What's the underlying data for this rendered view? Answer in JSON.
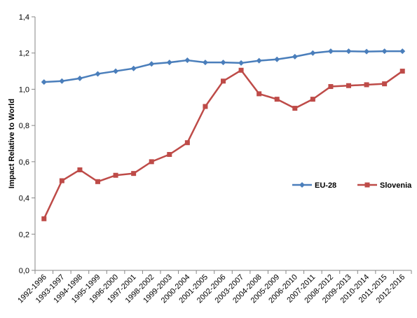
{
  "chart_data": {
    "type": "line",
    "title": "",
    "xlabel": "",
    "ylabel": "Impact Relative to World",
    "ylim": [
      0,
      1.4
    ],
    "yticks": [
      "0,0",
      "0,2",
      "0,4",
      "0,6",
      "0,8",
      "1,0",
      "1,2",
      "1,4"
    ],
    "grid": false,
    "legend_position": "right",
    "categories": [
      "1992-1996",
      "1993-1997",
      "1994-1998",
      "1995-1999",
      "1996-2000",
      "1997-2001",
      "1998-2002",
      "1999-2003",
      "2000-2004",
      "2001-2005",
      "2002-2006",
      "2003-2007",
      "2004-2008",
      "2005-2009",
      "2006-2010",
      "2007-2011",
      "2008-2012",
      "2009-2013",
      "2010-2014",
      "2011-2015",
      "2012-2016"
    ],
    "series": [
      {
        "name": "EU-28",
        "color": "#4a7ebb",
        "marker": "diamond",
        "values": [
          1.04,
          1.045,
          1.06,
          1.085,
          1.1,
          1.115,
          1.14,
          1.148,
          1.16,
          1.148,
          1.148,
          1.145,
          1.158,
          1.165,
          1.18,
          1.2,
          1.21,
          1.21,
          1.208,
          1.21,
          1.21
        ]
      },
      {
        "name": "Slovenia",
        "color": "#be4b48",
        "marker": "square",
        "values": [
          0.285,
          0.495,
          0.555,
          0.49,
          0.525,
          0.535,
          0.6,
          0.64,
          0.705,
          0.905,
          1.045,
          1.105,
          0.975,
          0.945,
          0.895,
          0.945,
          1.015,
          1.02,
          1.025,
          1.03,
          1.1
        ]
      }
    ]
  }
}
